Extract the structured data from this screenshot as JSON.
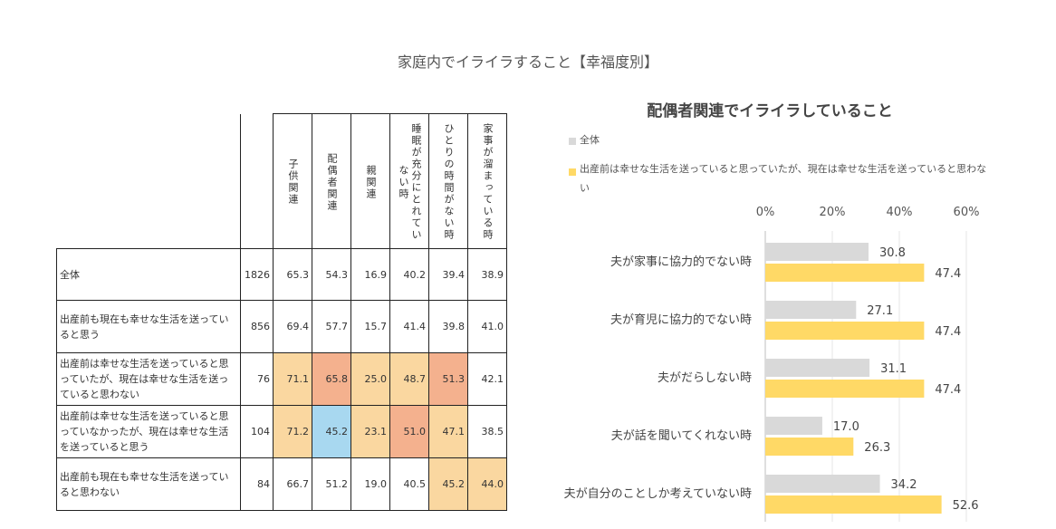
{
  "title": "家庭内でイライラすること【幸福度別】",
  "table": {
    "columns": [
      "子供関連",
      "配偶者関連",
      "親関連",
      "睡眠が充分にとれていない時",
      "ひとりの時間がない時",
      "家事が溜まっている時"
    ],
    "rows": [
      {
        "label": "全体",
        "n": "1826",
        "values": [
          "65.3",
          "54.3",
          "16.9",
          "40.2",
          "39.4",
          "38.9"
        ],
        "colors": [
          "",
          "",
          "",
          "",
          "",
          ""
        ]
      },
      {
        "label": "出産前も現在も幸せな生活を送っていると思う",
        "n": "856",
        "values": [
          "69.4",
          "57.7",
          "15.7",
          "41.4",
          "39.8",
          "41.0"
        ],
        "colors": [
          "",
          "",
          "",
          "",
          "",
          ""
        ]
      },
      {
        "label": "出産前は幸せな生活を送っていると思っていたが、現在は幸せな生活を送っていると思わない",
        "n": "76",
        "values": [
          "71.1",
          "65.8",
          "25.0",
          "48.7",
          "51.3",
          "42.1"
        ],
        "colors": [
          "#fad7a0",
          "#f4b18e",
          "#fad7a0",
          "#fad7a0",
          "#f4b18e",
          ""
        ]
      },
      {
        "label": "出産前は幸せな生活を送っていると思っていなかったが、現在は幸せな生活を送っていると思う",
        "n": "104",
        "values": [
          "71.2",
          "45.2",
          "23.1",
          "51.0",
          "47.1",
          "38.5"
        ],
        "colors": [
          "#fad7a0",
          "#a8d8f0",
          "#fad7a0",
          "#f4b18e",
          "#fad7a0",
          ""
        ]
      },
      {
        "label": "出産前も現在も幸せな生活を送っていると思わない",
        "n": "84",
        "values": [
          "66.7",
          "51.2",
          "19.0",
          "40.5",
          "45.2",
          "44.0"
        ],
        "colors": [
          "",
          "",
          "",
          "",
          "#fad7a0",
          "#fad7a0"
        ]
      }
    ]
  },
  "chart_data": {
    "type": "bar",
    "orientation": "horizontal",
    "title": "配偶者関連でイライラしていること",
    "categories": [
      "夫が家事に協力的でない時",
      "夫が育児に協力的でない時",
      "夫がだらしない時",
      "夫が話を聞いてくれない時",
      "夫が自分のことしか考えていない時"
    ],
    "series": [
      {
        "name": "全体",
        "values": [
          30.8,
          27.1,
          31.1,
          17.0,
          34.2
        ],
        "color": "#d9d9d9"
      },
      {
        "name": "出産前は幸せな生活を送っていると思っていたが、現在は幸せな生活を送っていると思わない",
        "values": [
          47.4,
          47.4,
          47.4,
          26.3,
          52.6
        ],
        "color": "#ffd966"
      }
    ],
    "xlim": [
      0,
      60
    ],
    "xticks": [
      "0%",
      "20%",
      "40%",
      "60%"
    ],
    "legend": "top-left",
    "grid": true
  }
}
